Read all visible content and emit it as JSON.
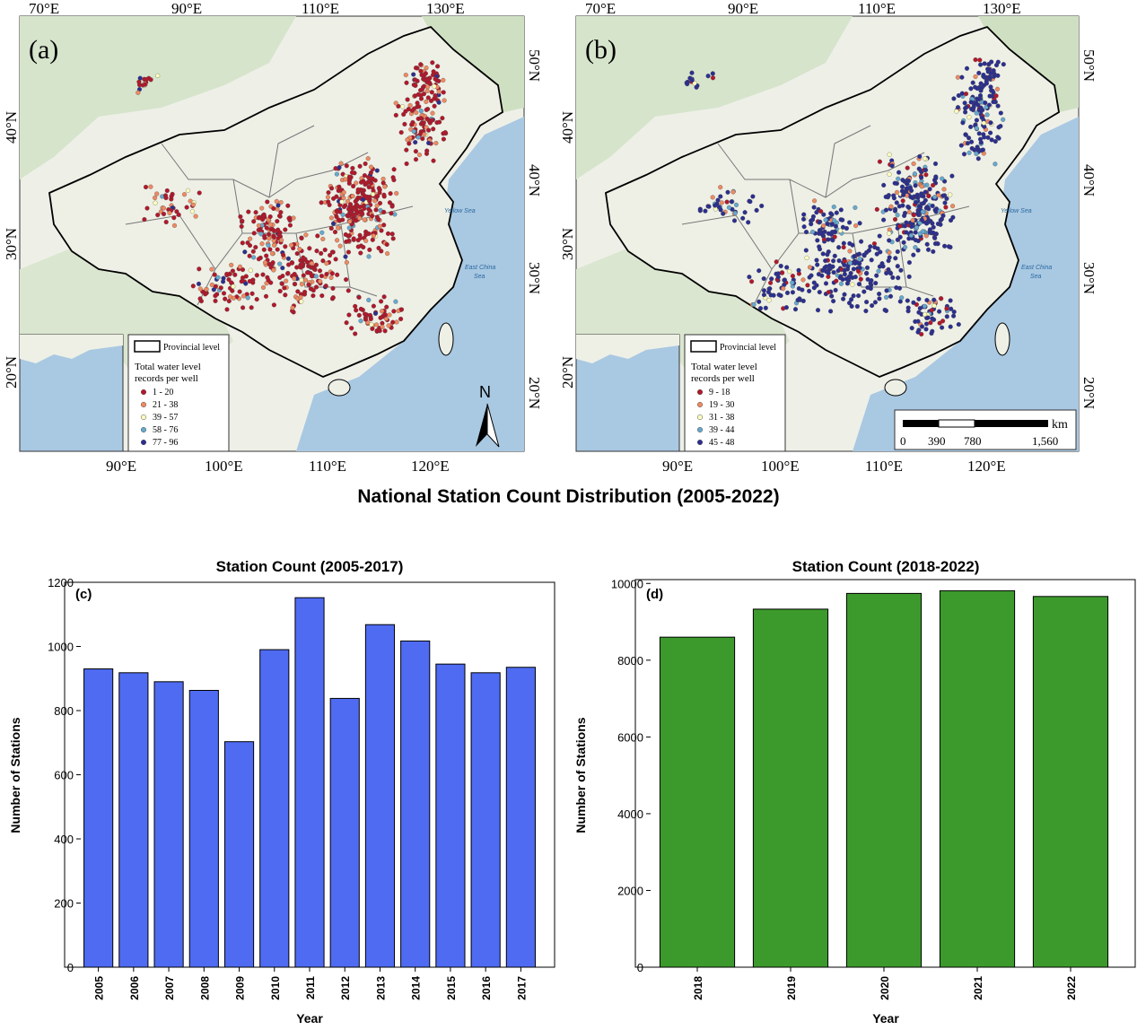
{
  "figure_title": "National Station Count Distribution (2005-2022)",
  "maps": [
    {
      "panel_label": "(a)",
      "top_lon_ticks": [
        "70°E",
        "90°E",
        "110°E",
        "130°E"
      ],
      "bottom_lon_ticks": [
        "90°E",
        "100°E",
        "110°E",
        "120°E"
      ],
      "left_lat_ticks": [
        "40°N",
        "30°N",
        "20°N"
      ],
      "right_lat_ticks": [
        "50°N",
        "40°N",
        "30°N",
        "20°N"
      ],
      "legend": {
        "boundary_label": "Provincial level",
        "title_line1": "Total water level",
        "title_line2": "records per well",
        "classes": [
          {
            "label": "1 - 20",
            "color": "#b2182b"
          },
          {
            "label": "21 - 38",
            "color": "#ef8a62"
          },
          {
            "label": "39 - 57",
            "color": "#ffffbf"
          },
          {
            "label": "58 - 76",
            "color": "#67a9cf"
          },
          {
            "label": "77 - 96",
            "color": "#2c2f8f"
          }
        ]
      },
      "sea_labels": [
        "Yellow Sea",
        "East China",
        "Sea"
      ],
      "north_arrow": "N"
    },
    {
      "panel_label": "(b)",
      "top_lon_ticks": [
        "70°E",
        "90°E",
        "110°E",
        "130°E"
      ],
      "bottom_lon_ticks": [
        "90°E",
        "100°E",
        "110°E",
        "120°E"
      ],
      "left_lat_ticks": [
        "40°N",
        "30°N",
        "20°N"
      ],
      "right_lat_ticks": [
        "50°N",
        "40°N",
        "30°N",
        "20°N"
      ],
      "legend": {
        "boundary_label": "Provincial level",
        "title_line1": "Total water level",
        "title_line2": "records per well",
        "classes": [
          {
            "label": "9 - 18",
            "color": "#b2182b"
          },
          {
            "label": "19 - 30",
            "color": "#ef8a62"
          },
          {
            "label": "31 - 38",
            "color": "#ffffbf"
          },
          {
            "label": "39 - 44",
            "color": "#67a9cf"
          },
          {
            "label": "45 - 48",
            "color": "#2c2f8f"
          }
        ]
      },
      "sea_labels": [
        "Yellow Sea",
        "East China",
        "Sea"
      ],
      "scale_bar": {
        "unit": "km",
        "ticks": [
          "0",
          "390",
          "780",
          "1,560"
        ]
      }
    }
  ],
  "chart_data": [
    {
      "type": "bar",
      "panel_label": "(c)",
      "title": "Station Count (2005-2017)",
      "xlabel": "Year",
      "ylabel": "Number of Stations",
      "categories": [
        "2005",
        "2006",
        "2007",
        "2008",
        "2009",
        "2010",
        "2011",
        "2012",
        "2013",
        "2014",
        "2015",
        "2016",
        "2017"
      ],
      "values": [
        930,
        918,
        890,
        863,
        703,
        990,
        1152,
        838,
        1068,
        1017,
        945,
        918,
        935
      ],
      "ylim": [
        0,
        1200
      ],
      "yticks": [
        "0",
        "200",
        "400",
        "600",
        "800",
        "1000",
        "1200"
      ],
      "color": "#4f6bf2"
    },
    {
      "type": "bar",
      "panel_label": "(d)",
      "title": "Station Count (2018-2022)",
      "xlabel": "Year",
      "ylabel": "Number of Stations",
      "categories": [
        "2018",
        "2019",
        "2020",
        "2021",
        "2022"
      ],
      "values": [
        8600,
        9330,
        9740,
        9810,
        9660
      ],
      "ylim": [
        0,
        10100
      ],
      "yticks": [
        "0",
        "2000",
        "4000",
        "6000",
        "8000",
        "10000"
      ],
      "color": "#3c9a2c"
    }
  ]
}
